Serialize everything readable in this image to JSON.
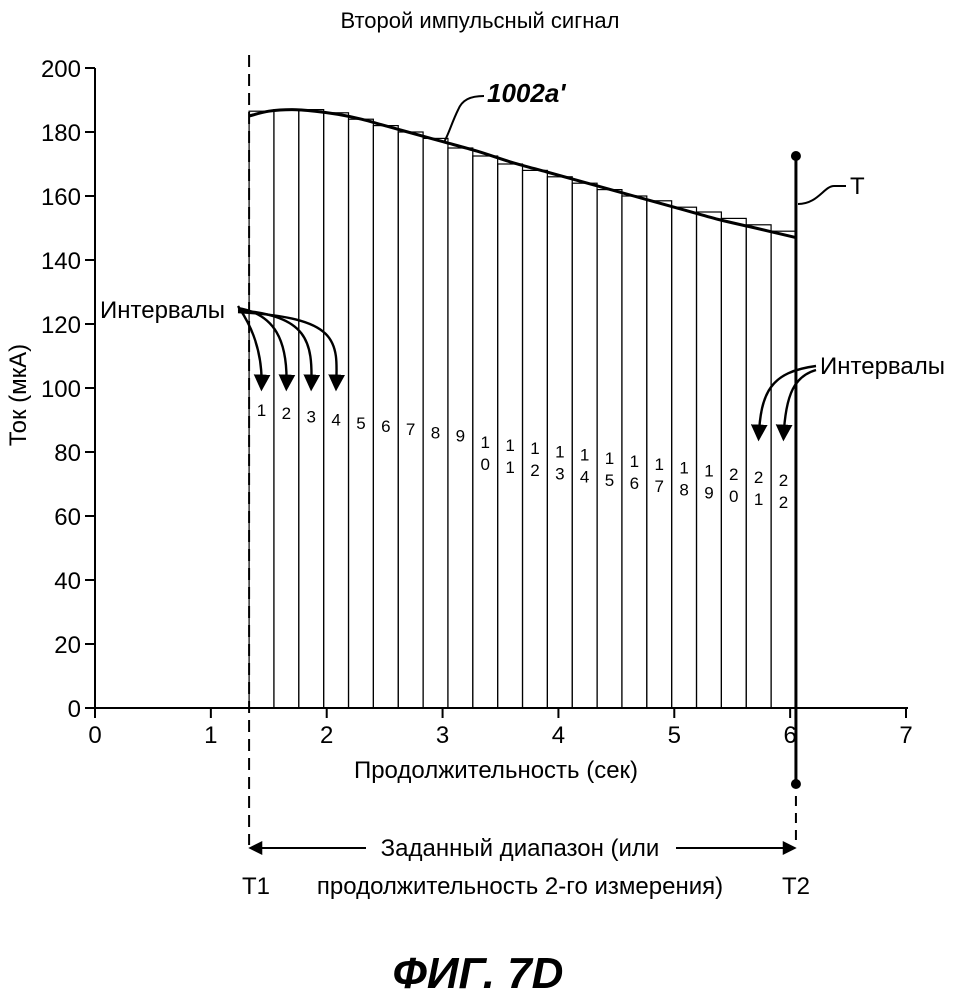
{
  "chart_data": {
    "type": "bar",
    "title": "Второй импульсный сигнал",
    "xlabel": "Продолжительность (сек)",
    "ylabel": "Ток (мкА)",
    "xlim": [
      0,
      7
    ],
    "ylim": [
      0,
      200
    ],
    "x_ticks": [
      "0",
      "1",
      "2",
      "3",
      "4",
      "5",
      "6",
      "7"
    ],
    "y_ticks": [
      "0",
      "20",
      "40",
      "60",
      "80",
      "100",
      "120",
      "140",
      "160",
      "180",
      "200"
    ],
    "grid": false,
    "t1": 1.33,
    "t2": 6.05,
    "interval_labels": [
      "1",
      "2",
      "3",
      "4",
      "5",
      "6",
      "7",
      "8",
      "9",
      "10",
      "11",
      "12",
      "13",
      "14",
      "15",
      "16",
      "17",
      "18",
      "19",
      "20",
      "21",
      "22"
    ],
    "values": [
      186.5,
      187,
      187,
      186,
      184,
      182,
      180,
      178,
      175,
      172.5,
      170,
      168,
      166,
      164,
      162,
      160,
      158.5,
      156.5,
      155,
      153,
      151,
      149
    ],
    "series": [
      {
        "name": "1002a'",
        "x": [
          1.33,
          1.5,
          1.7,
          1.9,
          2.1,
          2.3,
          2.5,
          2.7,
          3.0,
          3.3,
          3.6,
          3.9,
          4.2,
          4.5,
          4.8,
          5.1,
          5.4,
          5.7,
          6.05
        ],
        "y": [
          185,
          186.5,
          187,
          186.5,
          185.5,
          184,
          182,
          180,
          177,
          174,
          170.5,
          167.5,
          164.5,
          161.5,
          158.5,
          155.5,
          152.5,
          150,
          147
        ]
      }
    ],
    "annotations": {
      "curve_label": "1002a'",
      "t_label": "T",
      "intervals_left": "Интервалы",
      "intervals_right": "Интервалы",
      "range_line1": "Заданный диапазон (или",
      "range_line2": "продолжительность 2-го измерения)",
      "t1_label": "T1",
      "t2_label": "T2"
    }
  },
  "figure_label": "ФИГ. 7D"
}
